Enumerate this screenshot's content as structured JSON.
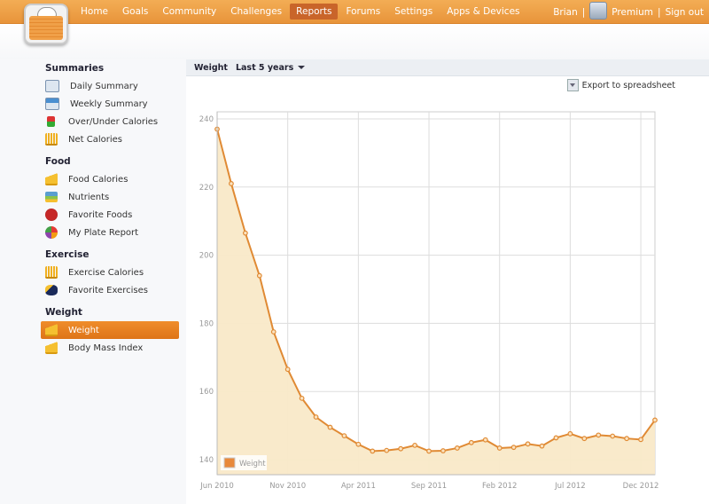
{
  "nav": {
    "items": [
      "Home",
      "Goals",
      "Community",
      "Challenges",
      "Reports",
      "Forums",
      "Settings",
      "Apps & Devices"
    ],
    "active": "Reports"
  },
  "user": {
    "name": "Brian",
    "premium": "Premium",
    "signout": "Sign out",
    "sep": "|"
  },
  "sidebar": {
    "sections": [
      {
        "title": "Summaries",
        "items": [
          {
            "label": "Daily Summary",
            "icon": "calendar-day-icon"
          },
          {
            "label": "Weekly Summary",
            "icon": "calendar-week-icon"
          },
          {
            "label": "Over/Under Calories",
            "icon": "up-down-arrows-icon"
          },
          {
            "label": "Net Calories",
            "icon": "bar-chart-icon"
          }
        ]
      },
      {
        "title": "Food",
        "items": [
          {
            "label": "Food Calories",
            "icon": "area-chart-icon"
          },
          {
            "label": "Nutrients",
            "icon": "stacked-chart-icon"
          },
          {
            "label": "Favorite Foods",
            "icon": "apple-star-icon"
          },
          {
            "label": "My Plate Report",
            "icon": "plate-pie-icon"
          }
        ]
      },
      {
        "title": "Exercise",
        "items": [
          {
            "label": "Exercise Calories",
            "icon": "bar-chart-icon"
          },
          {
            "label": "Favorite Exercises",
            "icon": "runner-star-icon"
          }
        ]
      },
      {
        "title": "Weight",
        "items": [
          {
            "label": "Weight",
            "icon": "area-chart-icon",
            "active": true
          },
          {
            "label": "Body Mass Index",
            "icon": "area-chart-icon"
          }
        ]
      }
    ]
  },
  "report": {
    "title": "Weight",
    "range": "Last 5 years",
    "export": "Export to spreadsheet"
  },
  "colors": {
    "accent": "#e8943a",
    "line": "#e08a34",
    "fill": "#f9e9c8"
  },
  "chart_data": {
    "type": "area",
    "title": "",
    "legend": [
      "Weight"
    ],
    "legend_position": "bottom-left",
    "ylim": [
      138,
      242
    ],
    "yticks": [
      140,
      160,
      180,
      200,
      220,
      240
    ],
    "xticks": [
      "Jun 2010",
      "Nov 2010",
      "Apr 2011",
      "Sep 2011",
      "Feb 2012",
      "Jul 2012",
      "Dec 2012"
    ],
    "xtick_index": [
      0,
      5,
      10,
      15,
      20,
      25,
      30
    ],
    "grid": true,
    "series": [
      {
        "name": "Weight",
        "x": [
          "Jun 2010",
          "Jul 2010",
          "Aug 2010",
          "Sep 2010",
          "Oct 2010",
          "Nov 2010",
          "Dec 2010",
          "Jan 2011",
          "Feb 2011",
          "Mar 2011",
          "Apr 2011",
          "May 2011",
          "Jun 2011",
          "Jul 2011",
          "Aug 2011",
          "Sep 2011",
          "Oct 2011",
          "Nov 2011",
          "Dec 2011",
          "Jan 2012",
          "Feb 2012",
          "Mar 2012",
          "Apr 2012",
          "May 2012",
          "Jun 2012",
          "Jul 2012",
          "Aug 2012",
          "Sep 2012",
          "Oct 2012",
          "Nov 2012",
          "Dec 2012",
          "Jan 2013"
        ],
        "values": [
          237,
          221,
          206.5,
          194,
          177.5,
          166.5,
          158,
          152.5,
          149.5,
          147,
          144.5,
          142.5,
          142.7,
          143.2,
          144.2,
          142.5,
          142.6,
          143.4,
          145,
          145.8,
          143.4,
          143.6,
          144.6,
          144,
          146.4,
          147.6,
          146.2,
          147.2,
          146.9,
          146.2,
          145.9,
          151.6
        ]
      }
    ]
  }
}
